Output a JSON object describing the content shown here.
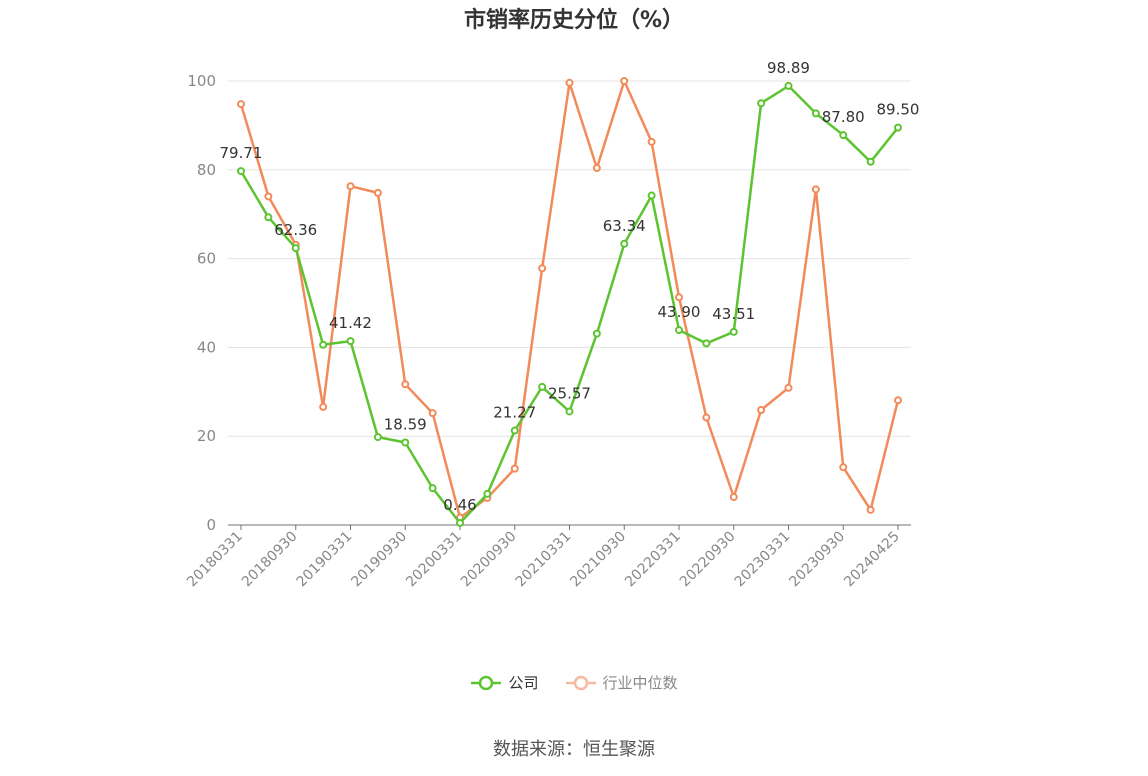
{
  "chart_data": {
    "type": "line",
    "title": "市销率历史分位（%）",
    "xlabel": "",
    "ylabel": "",
    "ylim": [
      0,
      100
    ],
    "yticks": [
      0,
      20,
      40,
      60,
      80,
      100
    ],
    "x": [
      "20180331",
      "20180630",
      "20180930",
      "20181231",
      "20190331",
      "20190630",
      "20190930",
      "20191231",
      "20200331",
      "20200630",
      "20200930",
      "20201231",
      "20210331",
      "20210630",
      "20210930",
      "20211231",
      "20220331",
      "20220630",
      "20220930",
      "20221231",
      "20230331",
      "20230630",
      "20230930",
      "20231231",
      "20240425"
    ],
    "xtick_labels": [
      "20180331",
      "20180930",
      "20190331",
      "20190930",
      "20200331",
      "20200930",
      "20210331",
      "20210930",
      "20220331",
      "20220930",
      "20230331",
      "20230930",
      "20240425"
    ],
    "grid": true,
    "legend_position": "bottom",
    "series": [
      {
        "name": "公司",
        "color": "#5cc430",
        "values": [
          79.71,
          69.3,
          62.36,
          40.6,
          41.42,
          19.8,
          18.59,
          8.3,
          0.46,
          7.0,
          21.27,
          31.1,
          25.57,
          43.1,
          63.34,
          74.2,
          43.9,
          40.9,
          43.51,
          95.0,
          98.89,
          92.7,
          87.8,
          81.8,
          89.5
        ],
        "labels": [
          "79.71",
          "",
          "62.36",
          "",
          "41.42",
          "",
          "18.59",
          "",
          "0.46",
          "",
          "21.27",
          "",
          "25.57",
          "",
          "63.34",
          "",
          "43.90",
          "",
          "43.51",
          "",
          "98.89",
          "",
          "87.80",
          "",
          "89.50"
        ]
      },
      {
        "name": "行业中位数",
        "color": "#f28a5a",
        "values": [
          94.8,
          74.0,
          63.1,
          26.6,
          76.3,
          74.8,
          31.7,
          25.2,
          1.7,
          6.1,
          12.7,
          57.8,
          99.6,
          80.4,
          100.0,
          86.3,
          51.3,
          24.2,
          6.3,
          25.9,
          30.9,
          75.6,
          13.0,
          3.4,
          28.1
        ]
      }
    ]
  },
  "source": "数据来源：恒生聚源"
}
